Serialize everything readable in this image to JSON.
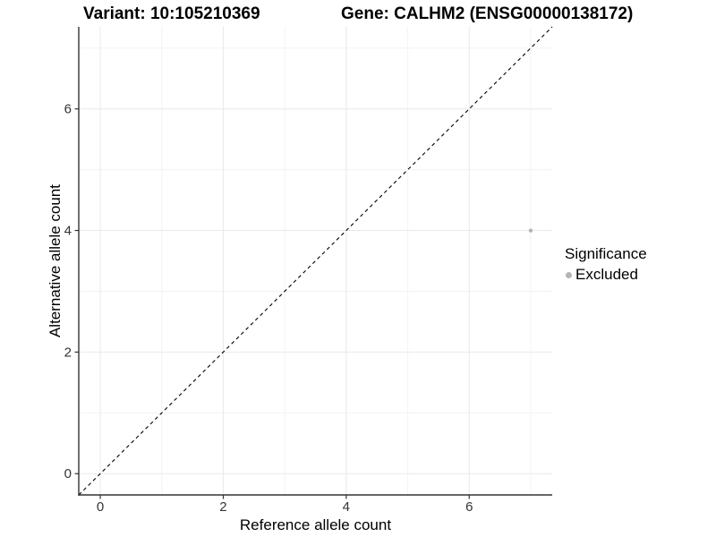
{
  "titles": {
    "variant": "Variant: 10:105210369",
    "gene": "Gene: CALHM2 (ENSG00000138172)"
  },
  "chart_data": {
    "type": "scatter",
    "title_left": "Variant: 10:105210369",
    "title_right": "Gene: CALHM2 (ENSG00000138172)",
    "xlabel": "Reference allele count",
    "ylabel": "Alternative allele count",
    "xlim": [
      -0.35,
      7.35
    ],
    "ylim": [
      -0.35,
      7.35
    ],
    "x_ticks": [
      0,
      2,
      4,
      6
    ],
    "y_ticks": [
      0,
      2,
      4,
      6
    ],
    "x_minor_ticks": [
      1,
      3,
      5,
      7
    ],
    "y_minor_ticks": [
      1,
      3,
      5,
      7
    ],
    "grid": true,
    "reference_line": {
      "type": "identity",
      "style": "dashed",
      "color": "#000000"
    },
    "series": [
      {
        "name": "Excluded",
        "color": "#b5b5b5",
        "points": [
          {
            "x": 7,
            "y": 4
          }
        ]
      }
    ],
    "legend": {
      "title": "Significance",
      "position": "right",
      "items": [
        {
          "label": "Excluded",
          "color": "#b5b5b5"
        }
      ]
    }
  },
  "colors": {
    "background": "#ffffff",
    "grid_major": "#e9e9e9",
    "grid_minor": "#f3f3f3",
    "axis_line": "#333333",
    "tick_mark": "#333333",
    "tick_label": "#333333",
    "diagonal": "#000000",
    "point": "#b5b5b5"
  }
}
